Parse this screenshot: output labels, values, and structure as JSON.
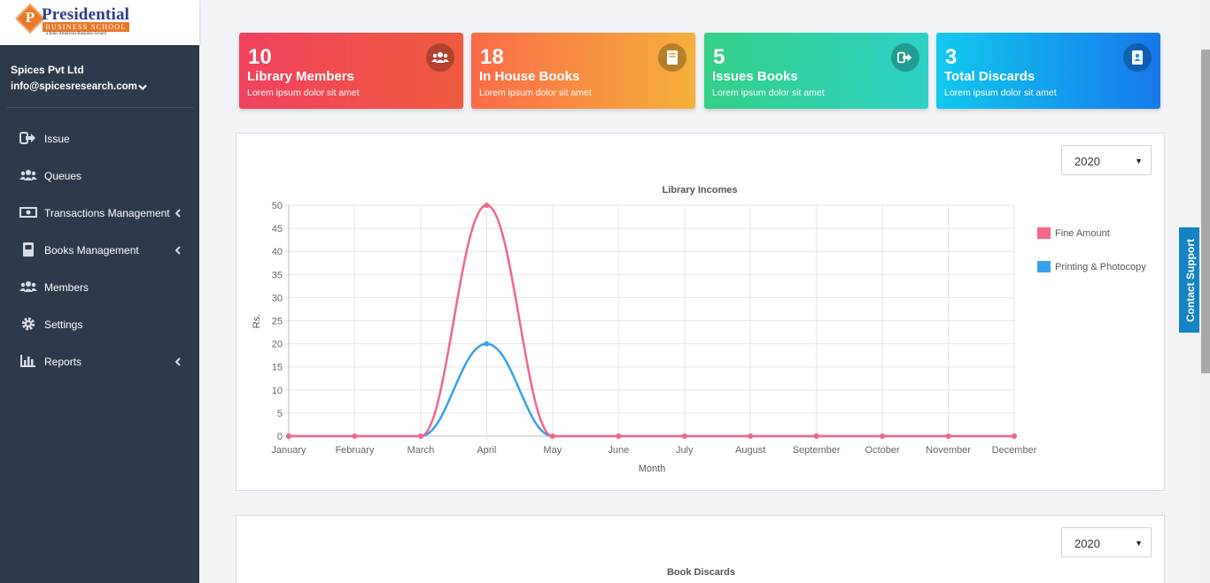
{
  "brand": {
    "letter": "P",
    "title": "Presidential",
    "subtitle": "BUSINESS SCHOOL",
    "tagline": "a Indo-American Business School"
  },
  "account": {
    "name": "Spices Pvt Ltd",
    "email": "info@spicesresearch.com"
  },
  "nav": [
    {
      "label": "Issue",
      "icon": "sign-out-icon",
      "has_submenu": false
    },
    {
      "label": "Queues",
      "icon": "users-icon",
      "has_submenu": false
    },
    {
      "label": "Transactions Management",
      "icon": "money-icon",
      "has_submenu": true
    },
    {
      "label": "Books Management",
      "icon": "book-icon",
      "has_submenu": true
    },
    {
      "label": "Members",
      "icon": "users-icon",
      "has_submenu": false
    },
    {
      "label": "Settings",
      "icon": "gear-icon",
      "has_submenu": false
    },
    {
      "label": "Reports",
      "icon": "bar-chart-icon",
      "has_submenu": true
    }
  ],
  "cards": [
    {
      "value": "10",
      "label": "Library Members",
      "sub": "Lorem ipsum dolor sit amet",
      "icon": "users-icon",
      "colors": [
        "#f0415e",
        "#ef5b3f"
      ]
    },
    {
      "value": "18",
      "label": "In House Books",
      "sub": "Lorem ipsum dolor sit amet",
      "icon": "book-icon",
      "colors": [
        "#fa6c48",
        "#f5b03a"
      ]
    },
    {
      "value": "5",
      "label": "Issues Books",
      "sub": "Lorem ipsum dolor sit amet",
      "icon": "sign-out-icon",
      "colors": [
        "#34cf86",
        "#2ed0c8"
      ]
    },
    {
      "value": "3",
      "label": "Total Discards",
      "sub": "Lorem ipsum dolor sit amet",
      "icon": "address-book-icon",
      "colors": [
        "#12c9ef",
        "#1678ea"
      ]
    }
  ],
  "income_panel": {
    "year_selected": "2020"
  },
  "discards_panel": {
    "year_selected": "2020",
    "title": "Book Discards"
  },
  "support_tab": "Contact Support",
  "chart_data": {
    "type": "line",
    "title": "Library Incomes",
    "xlabel": "Month",
    "ylabel": "Rs.",
    "categories": [
      "January",
      "February",
      "March",
      "April",
      "May",
      "June",
      "July",
      "August",
      "September",
      "October",
      "November",
      "December"
    ],
    "series": [
      {
        "name": "Fine Amount",
        "color": "#f5668a",
        "values": [
          0,
          0,
          0,
          50,
          0,
          0,
          0,
          0,
          0,
          0,
          0,
          0
        ]
      },
      {
        "name": "Printing & Photocopy",
        "color": "#36a2eb",
        "values": [
          0,
          0,
          0,
          20,
          0,
          0,
          0,
          0,
          0,
          0,
          0,
          0
        ]
      }
    ],
    "ylim": [
      0,
      50
    ],
    "yticks": [
      0,
      5,
      10,
      15,
      20,
      25,
      30,
      35,
      40,
      45,
      50
    ],
    "grid": true,
    "legend": "right"
  }
}
